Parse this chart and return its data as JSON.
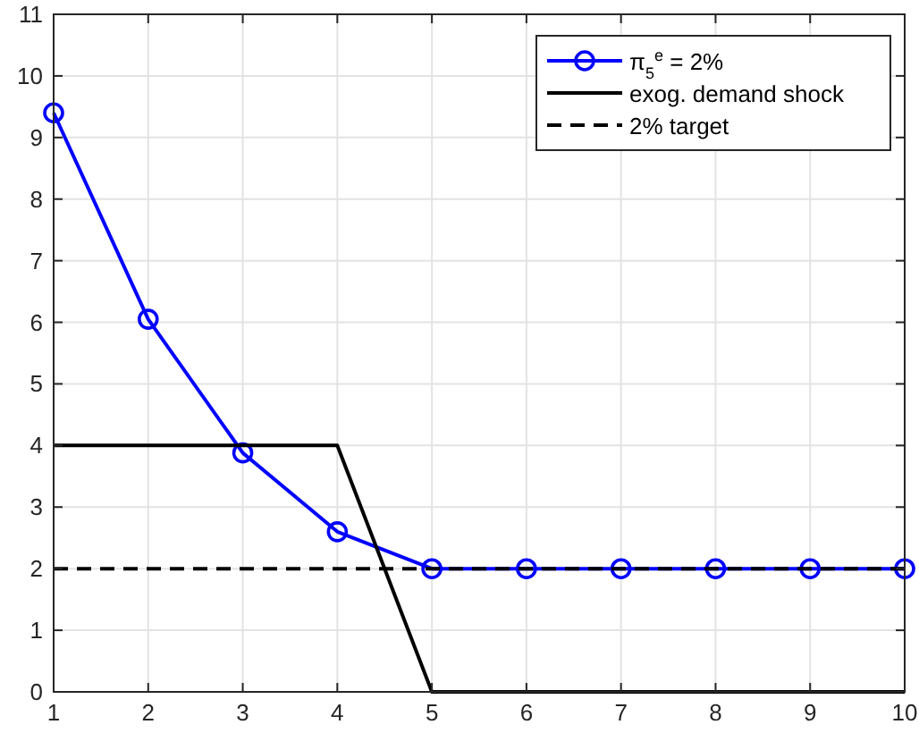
{
  "chart_data": {
    "type": "line",
    "xlim": [
      1,
      10
    ],
    "ylim": [
      0,
      11
    ],
    "xticks": [
      1,
      2,
      3,
      4,
      5,
      6,
      7,
      8,
      9,
      10
    ],
    "yticks": [
      0,
      1,
      2,
      3,
      4,
      5,
      6,
      7,
      8,
      9,
      10,
      11
    ],
    "grid": true,
    "legend": "top right",
    "series": [
      {
        "name": "π$_{5}$$^{e}$ = 2%",
        "color": "#0000ff",
        "marker": "circle",
        "line_style": "solid",
        "x": [
          1,
          2,
          3,
          4,
          5,
          6,
          7,
          8,
          9,
          10
        ],
        "values": [
          9.4,
          6.05,
          3.88,
          2.6,
          2,
          2,
          2,
          2,
          2,
          2
        ]
      },
      {
        "name": "exog. demand shock",
        "color": "#000000",
        "marker": "none",
        "line_style": "solid",
        "x": [
          1,
          4,
          5,
          10
        ],
        "values": [
          4,
          4,
          0,
          0
        ]
      },
      {
        "name": "2% target",
        "color": "#000000",
        "marker": "none",
        "line_style": "dashed",
        "x": [
          1,
          10
        ],
        "values": [
          2,
          2
        ]
      }
    ]
  }
}
